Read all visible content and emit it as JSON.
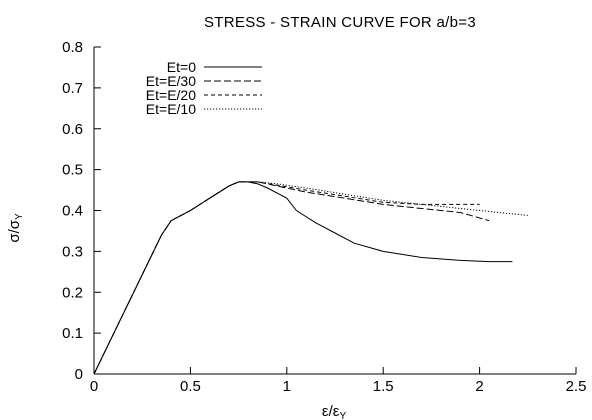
{
  "chart_data": {
    "type": "line",
    "title": "STRESS - STRAIN CURVE FOR a/b=3",
    "xlabel": {
      "main": "ε/ε",
      "subscript": "Y"
    },
    "ylabel": {
      "main": "σ/σ",
      "subscript": "Y"
    },
    "xlim": [
      0,
      2.5
    ],
    "ylim": [
      0,
      0.8
    ],
    "xticks": [
      "0",
      "0.5",
      "1",
      "1.5",
      "2",
      "2.5"
    ],
    "xtick_values": [
      0,
      0.5,
      1,
      1.5,
      2,
      2.5
    ],
    "yticks": [
      "0",
      "0.1",
      "0.2",
      "0.3",
      "0.4",
      "0.5",
      "0.6",
      "0.7",
      "0.8"
    ],
    "ytick_values": [
      0,
      0.1,
      0.2,
      0.3,
      0.4,
      0.5,
      0.6,
      0.7,
      0.8
    ],
    "grid": false,
    "legend_position": "top-left",
    "series": [
      {
        "name": "Et=0",
        "dash": "solid",
        "points": [
          [
            0,
            0
          ],
          [
            0.35,
            0.34
          ],
          [
            0.4,
            0.375
          ],
          [
            0.5,
            0.4
          ],
          [
            0.6,
            0.43
          ],
          [
            0.7,
            0.46
          ],
          [
            0.75,
            0.47
          ],
          [
            0.8,
            0.47
          ],
          [
            0.85,
            0.465
          ],
          [
            0.9,
            0.455
          ],
          [
            1.0,
            0.43
          ],
          [
            1.05,
            0.4
          ],
          [
            1.15,
            0.37
          ],
          [
            1.25,
            0.345
          ],
          [
            1.35,
            0.32
          ],
          [
            1.5,
            0.3
          ],
          [
            1.7,
            0.285
          ],
          [
            1.9,
            0.278
          ],
          [
            2.05,
            0.275
          ],
          [
            2.17,
            0.275
          ]
        ]
      },
      {
        "name": "Et=E/30",
        "dash": "long-dash",
        "points": [
          [
            0,
            0
          ],
          [
            0.35,
            0.34
          ],
          [
            0.4,
            0.375
          ],
          [
            0.5,
            0.4
          ],
          [
            0.6,
            0.43
          ],
          [
            0.7,
            0.46
          ],
          [
            0.75,
            0.47
          ],
          [
            0.8,
            0.47
          ],
          [
            0.85,
            0.47
          ],
          [
            0.95,
            0.46
          ],
          [
            1.1,
            0.445
          ],
          [
            1.3,
            0.43
          ],
          [
            1.5,
            0.415
          ],
          [
            1.7,
            0.405
          ],
          [
            1.9,
            0.395
          ],
          [
            2.05,
            0.375
          ]
        ]
      },
      {
        "name": "Et=E/20",
        "dash": "short-dash",
        "points": [
          [
            0,
            0
          ],
          [
            0.35,
            0.34
          ],
          [
            0.4,
            0.375
          ],
          [
            0.5,
            0.4
          ],
          [
            0.6,
            0.43
          ],
          [
            0.7,
            0.46
          ],
          [
            0.75,
            0.47
          ],
          [
            0.8,
            0.47
          ],
          [
            0.85,
            0.47
          ],
          [
            0.95,
            0.462
          ],
          [
            1.1,
            0.45
          ],
          [
            1.3,
            0.435
          ],
          [
            1.5,
            0.42
          ],
          [
            1.7,
            0.415
          ],
          [
            1.9,
            0.415
          ],
          [
            2.0,
            0.415
          ]
        ]
      },
      {
        "name": "Et=E/10",
        "dash": "dotted",
        "points": [
          [
            0,
            0
          ],
          [
            0.35,
            0.34
          ],
          [
            0.4,
            0.375
          ],
          [
            0.5,
            0.4
          ],
          [
            0.6,
            0.43
          ],
          [
            0.7,
            0.46
          ],
          [
            0.75,
            0.47
          ],
          [
            0.8,
            0.47
          ],
          [
            0.85,
            0.47
          ],
          [
            0.95,
            0.465
          ],
          [
            1.1,
            0.455
          ],
          [
            1.3,
            0.44
          ],
          [
            1.5,
            0.425
          ],
          [
            1.7,
            0.415
          ],
          [
            1.9,
            0.405
          ],
          [
            2.1,
            0.395
          ],
          [
            2.25,
            0.388
          ]
        ]
      }
    ]
  }
}
